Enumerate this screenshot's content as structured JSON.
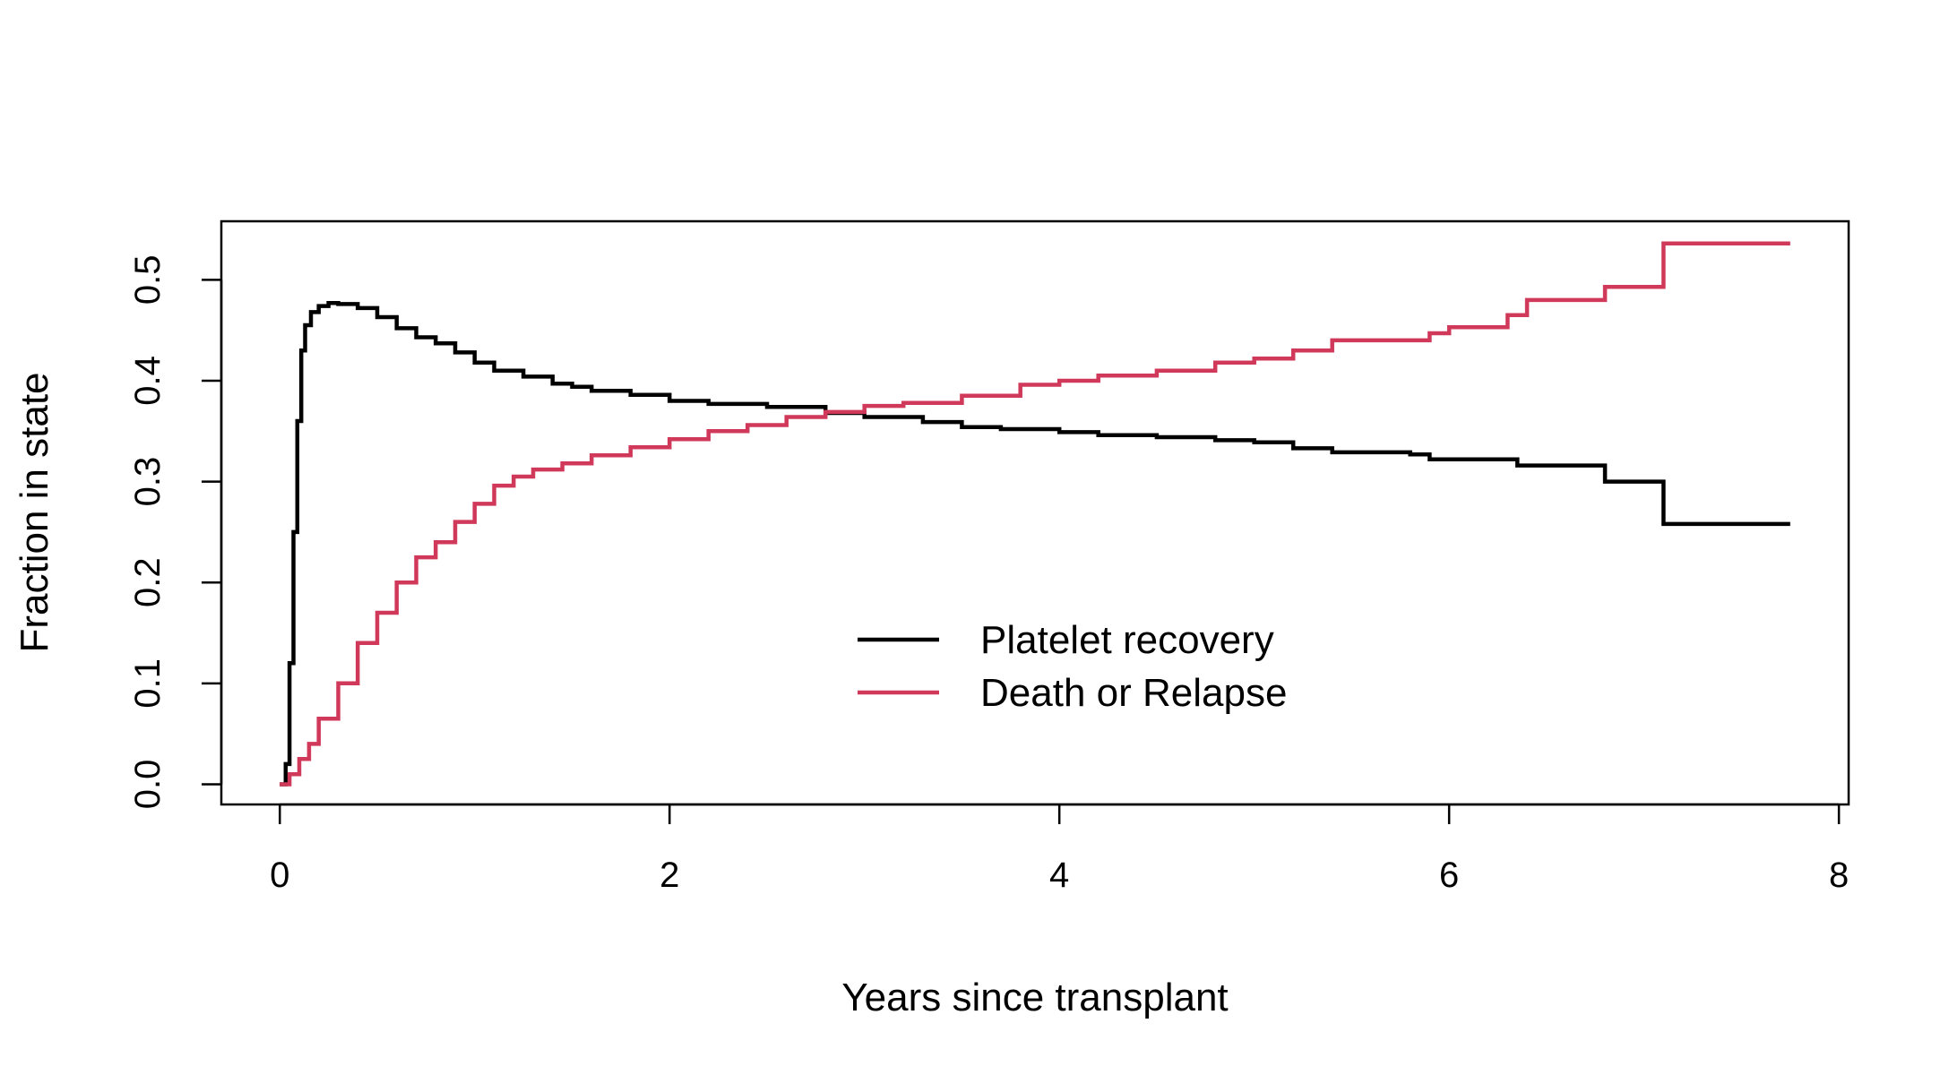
{
  "chart_data": {
    "type": "line",
    "title": "",
    "xlabel": "Years since transplant",
    "ylabel": "Fraction in state",
    "xlim": [
      -0.3,
      8.05
    ],
    "ylim": [
      -0.02,
      0.558
    ],
    "xticks": [
      0,
      2,
      4,
      6,
      8
    ],
    "yticks": [
      0.0,
      0.1,
      0.2,
      0.3,
      0.4,
      0.5
    ],
    "xtick_labels": [
      "0",
      "2",
      "4",
      "6",
      "8"
    ],
    "ytick_labels": [
      "0.0",
      "0.1",
      "0.2",
      "0.3",
      "0.4",
      "0.5"
    ],
    "grid": false,
    "legend_position": "center-bottom",
    "series": [
      {
        "name": "Platelet recovery",
        "color": "#000000",
        "step": true,
        "points": [
          [
            0,
            0
          ],
          [
            0.03,
            0.02
          ],
          [
            0.05,
            0.12
          ],
          [
            0.07,
            0.25
          ],
          [
            0.09,
            0.36
          ],
          [
            0.11,
            0.43
          ],
          [
            0.13,
            0.455
          ],
          [
            0.16,
            0.468
          ],
          [
            0.2,
            0.474
          ],
          [
            0.25,
            0.477
          ],
          [
            0.3,
            0.476
          ],
          [
            0.4,
            0.472
          ],
          [
            0.5,
            0.463
          ],
          [
            0.6,
            0.452
          ],
          [
            0.7,
            0.443
          ],
          [
            0.8,
            0.437
          ],
          [
            0.9,
            0.428
          ],
          [
            1.0,
            0.418
          ],
          [
            1.1,
            0.41
          ],
          [
            1.25,
            0.404
          ],
          [
            1.4,
            0.397
          ],
          [
            1.5,
            0.394
          ],
          [
            1.6,
            0.39
          ],
          [
            1.8,
            0.386
          ],
          [
            2.0,
            0.38
          ],
          [
            2.2,
            0.377
          ],
          [
            2.5,
            0.374
          ],
          [
            2.8,
            0.368
          ],
          [
            3.0,
            0.364
          ],
          [
            3.3,
            0.359
          ],
          [
            3.5,
            0.354
          ],
          [
            3.7,
            0.352
          ],
          [
            4.0,
            0.349
          ],
          [
            4.2,
            0.346
          ],
          [
            4.5,
            0.344
          ],
          [
            4.8,
            0.341
          ],
          [
            5.0,
            0.339
          ],
          [
            5.2,
            0.333
          ],
          [
            5.4,
            0.329
          ],
          [
            5.8,
            0.327
          ],
          [
            5.9,
            0.322
          ],
          [
            6.35,
            0.316
          ],
          [
            6.8,
            0.3
          ],
          [
            7.1,
            0.258
          ],
          [
            7.75,
            0.258
          ]
        ]
      },
      {
        "name": "Death or Relapse",
        "color": "#D1395A",
        "step": true,
        "points": [
          [
            0,
            0
          ],
          [
            0.05,
            0.01
          ],
          [
            0.1,
            0.025
          ],
          [
            0.15,
            0.04
          ],
          [
            0.2,
            0.065
          ],
          [
            0.3,
            0.1
          ],
          [
            0.4,
            0.14
          ],
          [
            0.5,
            0.17
          ],
          [
            0.6,
            0.2
          ],
          [
            0.7,
            0.225
          ],
          [
            0.8,
            0.24
          ],
          [
            0.9,
            0.26
          ],
          [
            1.0,
            0.278
          ],
          [
            1.1,
            0.296
          ],
          [
            1.2,
            0.305
          ],
          [
            1.3,
            0.312
          ],
          [
            1.45,
            0.318
          ],
          [
            1.6,
            0.326
          ],
          [
            1.8,
            0.334
          ],
          [
            2.0,
            0.342
          ],
          [
            2.2,
            0.35
          ],
          [
            2.4,
            0.356
          ],
          [
            2.6,
            0.364
          ],
          [
            2.8,
            0.369
          ],
          [
            3.0,
            0.375
          ],
          [
            3.2,
            0.378
          ],
          [
            3.5,
            0.385
          ],
          [
            3.8,
            0.396
          ],
          [
            4.0,
            0.4
          ],
          [
            4.2,
            0.405
          ],
          [
            4.5,
            0.41
          ],
          [
            4.8,
            0.418
          ],
          [
            5.0,
            0.422
          ],
          [
            5.2,
            0.43
          ],
          [
            5.4,
            0.44
          ],
          [
            5.9,
            0.447
          ],
          [
            6.0,
            0.453
          ],
          [
            6.3,
            0.465
          ],
          [
            6.4,
            0.48
          ],
          [
            6.8,
            0.493
          ],
          [
            7.1,
            0.536
          ],
          [
            7.75,
            0.536
          ]
        ]
      }
    ]
  }
}
